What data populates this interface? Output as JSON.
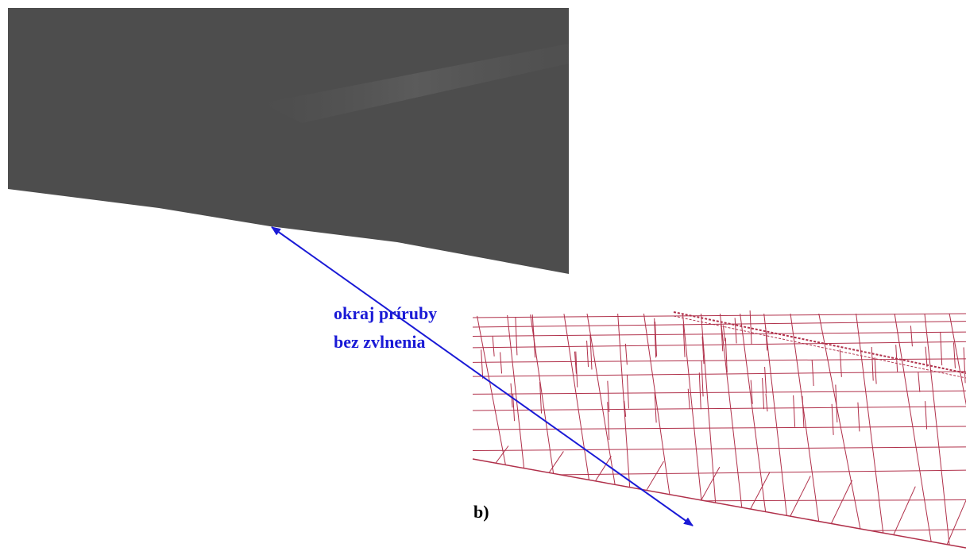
{
  "annotation": {
    "lines": [
      "okraj príruby",
      "bez zvlnenia"
    ]
  },
  "panel_label": "b)"
}
